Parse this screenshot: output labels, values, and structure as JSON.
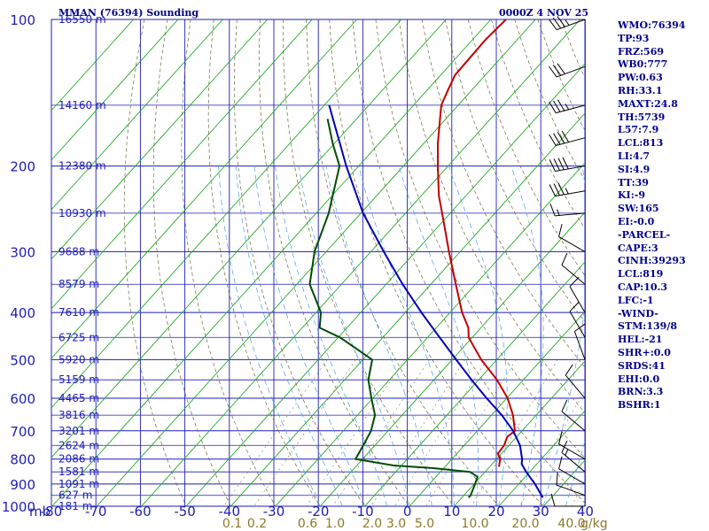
{
  "header": {
    "title": "MMAN (76394) Sounding",
    "datetime": "0000Z  4 NOV 25"
  },
  "indices": [
    "WMO:76394",
    "TP:93",
    "FRZ:569",
    "WB0:777",
    "PW:0.63",
    "RH:33.1",
    "MAXT:24.8",
    "TH:5739",
    "L57:7.9",
    "LCL:813",
    "LI:4.7",
    "SI:4.9",
    "TT:39",
    "KI:-9",
    "SW:165",
    "EI:-0.0",
    "-PARCEL-",
    "CAPE:3",
    "CINH:39293",
    "LCL:819",
    "CAP:10.3",
    "LFC:-1",
    "-WIND-",
    "STM:139/8",
    "HEL:-21",
    "SHR+:0.0",
    "SRDS:41",
    "EHI:0.0",
    "BRN:3.3",
    "BSHR:1"
  ],
  "chart_data": {
    "type": "skew-t",
    "title": "MMAN (76394) Sounding",
    "ylabel": "mb",
    "xlabel_unit": "g/kg",
    "pressure_ticks": [
      100,
      200,
      300,
      400,
      500,
      600,
      700,
      800,
      900,
      1000
    ],
    "temperature_ticks": [
      -80,
      -70,
      -60,
      -50,
      -40,
      -30,
      -20,
      -10,
      0,
      10,
      20,
      30,
      40
    ],
    "mixing_ratio_ticks": [
      "0.1",
      "0.2",
      "0.6",
      "1.0",
      "2.0",
      "3.0",
      "5.0",
      "10.0",
      "20.0",
      "40.0"
    ],
    "height_labels": [
      {
        "p": 100,
        "label": "16550 m"
      },
      {
        "p": 150,
        "label": "14160 m"
      },
      {
        "p": 200,
        "label": "12380 m"
      },
      {
        "p": 250,
        "label": "10930 m"
      },
      {
        "p": 300,
        "label": "9688 m"
      },
      {
        "p": 350,
        "label": "8579 m"
      },
      {
        "p": 400,
        "label": "7610 m"
      },
      {
        "p": 450,
        "label": "6725 m"
      },
      {
        "p": 500,
        "label": "5920 m"
      },
      {
        "p": 550,
        "label": "5159 m"
      },
      {
        "p": 600,
        "label": "4465 m"
      },
      {
        "p": 650,
        "label": "3816 m"
      },
      {
        "p": 700,
        "label": "3201 m"
      },
      {
        "p": 750,
        "label": "2624 m"
      },
      {
        "p": 800,
        "label": "2086 m"
      },
      {
        "p": 850,
        "label": "1581 m"
      },
      {
        "p": 900,
        "label": "1091 m"
      },
      {
        "p": 950,
        "label": "627 m"
      },
      {
        "p": 1000,
        "label": "181 m"
      }
    ],
    "series": [
      {
        "name": "Temperature",
        "color": "#c00000",
        "points": [
          [
            100,
            -76.6
          ],
          [
            110,
            -77.1
          ],
          [
            130,
            -76.8
          ],
          [
            140,
            -75.3
          ],
          [
            150,
            -73.8
          ],
          [
            180,
            -66.8
          ],
          [
            200,
            -62.3
          ],
          [
            230,
            -56.1
          ],
          [
            250,
            -51.8
          ],
          [
            300,
            -42.5
          ],
          [
            350,
            -34.4
          ],
          [
            400,
            -27.3
          ],
          [
            430,
            -22.8
          ],
          [
            450,
            -20.8
          ],
          [
            500,
            -13.5
          ],
          [
            550,
            -5.9
          ],
          [
            600,
            0.2
          ],
          [
            650,
            4.8
          ],
          [
            700,
            8.4
          ],
          [
            720,
            7.9
          ],
          [
            750,
            8.9
          ],
          [
            780,
            9.2
          ],
          [
            800,
            10.8
          ],
          [
            830,
            12.1
          ]
        ]
      },
      {
        "name": "Dewpoint",
        "color": "#004d00",
        "points": [
          [
            160,
            -96.5
          ],
          [
            180,
            -90.3
          ],
          [
            200,
            -84.3
          ],
          [
            250,
            -77.2
          ],
          [
            300,
            -72.6
          ],
          [
            350,
            -67.1
          ],
          [
            400,
            -58.9
          ],
          [
            430,
            -56.1
          ],
          [
            450,
            -49.6
          ],
          [
            500,
            -37.9
          ],
          [
            550,
            -34.7
          ],
          [
            600,
            -30.3
          ],
          [
            650,
            -26.1
          ],
          [
            700,
            -23.8
          ],
          [
            750,
            -22.6
          ],
          [
            800,
            -21.6
          ],
          [
            825,
            -11.7
          ],
          [
            835,
            -2.6
          ],
          [
            850,
            6.6
          ],
          [
            870,
            9.3
          ],
          [
            900,
            10.2
          ],
          [
            950,
            11.5
          ],
          [
            960,
            11.5
          ]
        ]
      },
      {
        "name": "Parcel",
        "color": "#0000b4",
        "points": [
          [
            150,
            -98.9
          ],
          [
            200,
            -82.8
          ],
          [
            250,
            -69.5
          ],
          [
            300,
            -57.1
          ],
          [
            350,
            -46.3
          ],
          [
            400,
            -36.4
          ],
          [
            450,
            -27.3
          ],
          [
            500,
            -19.1
          ],
          [
            550,
            -11.6
          ],
          [
            600,
            -4.5
          ],
          [
            650,
            2.3
          ],
          [
            700,
            8.0
          ],
          [
            750,
            12.5
          ],
          [
            800,
            15.7
          ],
          [
            819,
            16.6
          ],
          [
            850,
            19.2
          ],
          [
            900,
            23.6
          ],
          [
            950,
            27.4
          ],
          [
            960,
            28.1
          ]
        ]
      }
    ],
    "wind_barbs": [
      {
        "p": 100,
        "dir": 250,
        "spd": 35
      },
      {
        "p": 125,
        "dir": 250,
        "spd": 30
      },
      {
        "p": 150,
        "dir": 255,
        "spd": 35
      },
      {
        "p": 175,
        "dir": 255,
        "spd": 40
      },
      {
        "p": 200,
        "dir": 260,
        "spd": 40
      },
      {
        "p": 225,
        "dir": 260,
        "spd": 35
      },
      {
        "p": 250,
        "dir": 265,
        "spd": 15
      },
      {
        "p": 300,
        "dir": 300,
        "spd": 10
      },
      {
        "p": 350,
        "dir": 310,
        "spd": 10
      },
      {
        "p": 400,
        "dir": 330,
        "spd": 10
      },
      {
        "p": 450,
        "dir": 330,
        "spd": 10
      },
      {
        "p": 500,
        "dir": 340,
        "spd": 10
      },
      {
        "p": 600,
        "dir": 320,
        "spd": 10
      },
      {
        "p": 700,
        "dir": 310,
        "spd": 10
      },
      {
        "p": 800,
        "dir": 300,
        "spd": 10
      },
      {
        "p": 850,
        "dir": 310,
        "spd": 15
      },
      {
        "p": 900,
        "dir": 300,
        "spd": 10
      },
      {
        "p": 950,
        "dir": 290,
        "spd": 10
      },
      {
        "p": 1000,
        "dir": 270,
        "spd": 10
      }
    ]
  }
}
